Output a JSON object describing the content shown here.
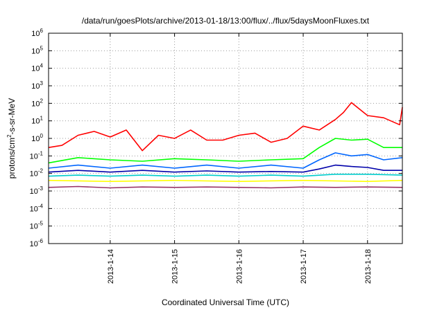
{
  "chart_data": {
    "type": "line",
    "title": "/data/run/goesPlots/archive/2013-01-18/13:00/flux/../flux/5daysMoonFluxes.txt",
    "xlabel": "Coordinated Universal Time (UTC)",
    "ylabel": "protons/cm2-s-sr-MeV",
    "ylabel_parts": {
      "pre": "protons/cm",
      "sup": "2",
      "post": "-s-sr-MeV"
    },
    "xscale": "time",
    "yscale": "log",
    "xlim": [
      "2013-01-13T01:00",
      "2013-01-18T13:00"
    ],
    "ylim": [
      1e-06,
      1000000.0
    ],
    "grid": true,
    "x_ticks": [
      "2013-1-14",
      "2013-1-15",
      "2013-1-16",
      "2013-1-17",
      "2013-1-18"
    ],
    "y_ticks": [
      {
        "base": "10",
        "exp": "-6",
        "value": 1e-06
      },
      {
        "base": "10",
        "exp": "-5",
        "value": 1e-05
      },
      {
        "base": "10",
        "exp": "-4",
        "value": 0.0001
      },
      {
        "base": "10",
        "exp": "-3",
        "value": 0.001
      },
      {
        "base": "10",
        "exp": "-2",
        "value": 0.01
      },
      {
        "base": "10",
        "exp": "-1",
        "value": 0.1
      },
      {
        "base": "10",
        "exp": "0",
        "value": 1
      },
      {
        "base": "10",
        "exp": "1",
        "value": 10
      },
      {
        "base": "10",
        "exp": "2",
        "value": 100
      },
      {
        "base": "10",
        "exp": "3",
        "value": 1000
      },
      {
        "base": "10",
        "exp": "4",
        "value": 10000
      },
      {
        "base": "10",
        "exp": "5",
        "value": 100000
      },
      {
        "base": "10",
        "exp": "6",
        "value": 1000000
      }
    ],
    "series": [
      {
        "color": "#ff0000",
        "x": [
          "2013-01-13T01:00",
          "2013-01-13T06:00",
          "2013-01-13T12:00",
          "2013-01-13T18:00",
          "2013-01-14T00:00",
          "2013-01-14T06:00",
          "2013-01-14T12:00",
          "2013-01-14T18:00",
          "2013-01-15T00:00",
          "2013-01-15T06:00",
          "2013-01-15T12:00",
          "2013-01-15T18:00",
          "2013-01-16T00:00",
          "2013-01-16T06:00",
          "2013-01-16T12:00",
          "2013-01-16T18:00",
          "2013-01-17T00:00",
          "2013-01-17T06:00",
          "2013-01-17T12:00",
          "2013-01-17T15:00",
          "2013-01-17T18:00",
          "2013-01-18T00:00",
          "2013-01-18T06:00",
          "2013-01-18T12:00",
          "2013-01-18T13:00"
        ],
        "y": [
          0.3,
          0.4,
          1.5,
          2.5,
          1.2,
          3.0,
          0.2,
          1.5,
          1.0,
          3.0,
          0.8,
          0.8,
          1.5,
          2.0,
          0.6,
          1.0,
          5.0,
          3.0,
          12,
          30,
          110,
          20,
          15,
          6,
          60
        ]
      },
      {
        "color": "#00ff00",
        "x": [
          "2013-01-13T01:00",
          "2013-01-13T12:00",
          "2013-01-14T00:00",
          "2013-01-14T12:00",
          "2013-01-15T00:00",
          "2013-01-15T12:00",
          "2013-01-16T00:00",
          "2013-01-16T12:00",
          "2013-01-17T00:00",
          "2013-01-17T06:00",
          "2013-01-17T12:00",
          "2013-01-17T18:00",
          "2013-01-18T00:00",
          "2013-01-18T06:00",
          "2013-01-18T13:00"
        ],
        "y": [
          0.04,
          0.08,
          0.06,
          0.05,
          0.07,
          0.06,
          0.05,
          0.06,
          0.07,
          0.3,
          1.0,
          0.8,
          0.9,
          0.3,
          0.3
        ]
      },
      {
        "color": "#0066ff",
        "x": [
          "2013-01-13T01:00",
          "2013-01-13T12:00",
          "2013-01-14T00:00",
          "2013-01-14T12:00",
          "2013-01-15T00:00",
          "2013-01-15T12:00",
          "2013-01-16T00:00",
          "2013-01-16T12:00",
          "2013-01-17T00:00",
          "2013-01-17T06:00",
          "2013-01-17T12:00",
          "2013-01-17T18:00",
          "2013-01-18T00:00",
          "2013-01-18T06:00",
          "2013-01-18T13:00"
        ],
        "y": [
          0.02,
          0.03,
          0.02,
          0.03,
          0.02,
          0.03,
          0.02,
          0.03,
          0.02,
          0.06,
          0.15,
          0.1,
          0.12,
          0.06,
          0.08
        ]
      },
      {
        "color": "#0000aa",
        "x": [
          "2013-01-13T01:00",
          "2013-01-13T12:00",
          "2013-01-14T00:00",
          "2013-01-14T12:00",
          "2013-01-15T00:00",
          "2013-01-15T12:00",
          "2013-01-16T00:00",
          "2013-01-16T12:00",
          "2013-01-17T00:00",
          "2013-01-17T06:00",
          "2013-01-17T12:00",
          "2013-01-17T18:00",
          "2013-01-18T00:00",
          "2013-01-18T06:00",
          "2013-01-18T13:00"
        ],
        "y": [
          0.012,
          0.015,
          0.012,
          0.015,
          0.012,
          0.014,
          0.012,
          0.013,
          0.012,
          0.018,
          0.03,
          0.025,
          0.022,
          0.015,
          0.015
        ]
      },
      {
        "color": "#00cccc",
        "x": [
          "2013-01-13T01:00",
          "2013-01-13T12:00",
          "2013-01-14T00:00",
          "2013-01-14T12:00",
          "2013-01-15T00:00",
          "2013-01-15T12:00",
          "2013-01-16T00:00",
          "2013-01-16T12:00",
          "2013-01-17T00:00",
          "2013-01-17T12:00",
          "2013-01-18T00:00",
          "2013-01-18T13:00"
        ],
        "y": [
          0.007,
          0.008,
          0.007,
          0.008,
          0.007,
          0.008,
          0.007,
          0.008,
          0.007,
          0.009,
          0.009,
          0.008
        ]
      },
      {
        "color": "#ffff00",
        "x": [
          "2013-01-13T01:00",
          "2013-01-14T00:00",
          "2013-01-15T00:00",
          "2013-01-16T00:00",
          "2013-01-17T00:00",
          "2013-01-18T00:00",
          "2013-01-18T13:00"
        ],
        "y": [
          0.004,
          0.0035,
          0.004,
          0.0035,
          0.004,
          0.0035,
          0.004
        ]
      },
      {
        "color": "#993366",
        "x": [
          "2013-01-13T01:00",
          "2013-01-13T12:00",
          "2013-01-14T00:00",
          "2013-01-14T12:00",
          "2013-01-15T00:00",
          "2013-01-15T12:00",
          "2013-01-16T00:00",
          "2013-01-16T12:00",
          "2013-01-17T00:00",
          "2013-01-17T12:00",
          "2013-01-18T00:00",
          "2013-01-18T13:00"
        ],
        "y": [
          0.0016,
          0.0018,
          0.0015,
          0.0017,
          0.0016,
          0.0017,
          0.0016,
          0.0015,
          0.0017,
          0.0016,
          0.0017,
          0.0016
        ]
      }
    ]
  }
}
